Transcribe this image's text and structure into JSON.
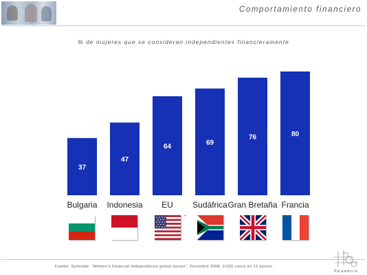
{
  "header": {
    "title": "Comportamiento financiero"
  },
  "chart_data": {
    "type": "bar",
    "title": "% de mujeres que se consideran independientes financieramente",
    "categories": [
      "Bulgaria",
      "Indonesia",
      "EU",
      "Sudáfrica",
      "Gran Bretaña",
      "Francia"
    ],
    "values": [
      37,
      47,
      64,
      69,
      76,
      80
    ],
    "ylim": [
      0,
      80
    ],
    "grid": false,
    "bar_color": "#1631B5",
    "value_label_color": "#FFFFFF",
    "category_note": "*"
  },
  "flags": [
    "bulgaria-flag-icon",
    "indonesia-flag-icon",
    "usa-flag-icon",
    "south-africa-flag-icon",
    "united-kingdom-flag-icon",
    "france-flag-icon"
  ],
  "footer": {
    "source": "Fuente: Synovate, “Women's Financial Independence global survey”, Diciembre 2008, 9,000 casos en 12 países."
  },
  "logo": {
    "text": "Parametría"
  }
}
